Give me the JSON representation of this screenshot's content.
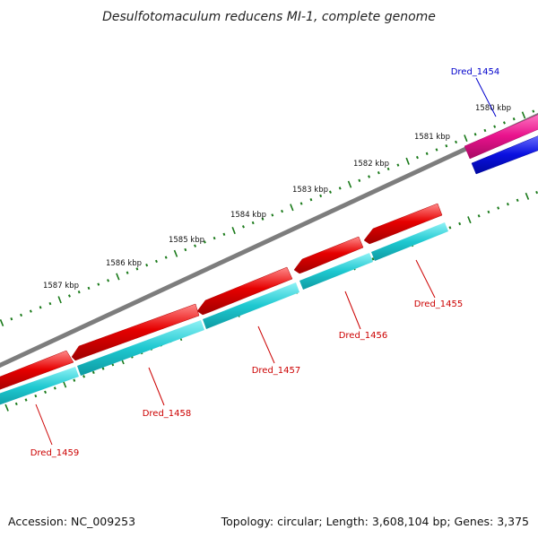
{
  "title": "Desulfotomaculum reducens MI-1, complete genome",
  "footer": {
    "accession": "Accession: NC_009253",
    "summary": "Topology: circular; Length: 3,608,104 bp; Genes: 3,375"
  },
  "ticks": [
    {
      "label": "1587 kbp"
    },
    {
      "label": "1586 kbp"
    },
    {
      "label": "1585 kbp"
    },
    {
      "label": "1584 kbp"
    },
    {
      "label": "1583 kbp"
    },
    {
      "label": "1582 kbp"
    },
    {
      "label": "1581 kbp"
    },
    {
      "label": "1580 kbp"
    }
  ],
  "genes": [
    {
      "name": "Dred_1454",
      "color": "#0000cc"
    },
    {
      "name": "Dred_1455",
      "color": "#cc0000"
    },
    {
      "name": "Dred_1456",
      "color": "#cc0000"
    },
    {
      "name": "Dred_1457",
      "color": "#cc0000"
    },
    {
      "name": "Dred_1458",
      "color": "#cc0000"
    },
    {
      "name": "Dred_1459",
      "color": "#cc0000"
    }
  ],
  "colors": {
    "backbone": "#808080",
    "cds_red": "#e00000",
    "cds_cyan": "#1ec8d0",
    "cds_magenta": "#e8128c",
    "cds_blue": "#0a10e0",
    "tick_green": "#1a7a1a",
    "label_red": "#cc0000",
    "label_blue": "#0000cc"
  }
}
